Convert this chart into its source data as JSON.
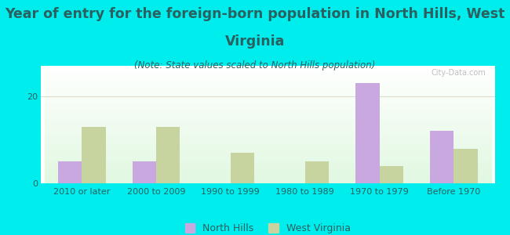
{
  "categories": [
    "2010 or later",
    "2000 to 2009",
    "1990 to 1999",
    "1980 to 1989",
    "1970 to 1979",
    "Before 1970"
  ],
  "north_hills": [
    5,
    5,
    0,
    0,
    23,
    12
  ],
  "west_virginia": [
    13,
    13,
    7,
    5,
    4,
    8
  ],
  "north_hills_color": "#c9a8e0",
  "west_virginia_color": "#c8d4a0",
  "title_line1": "Year of entry for the foreign-born population in North Hills, West",
  "title_line2": "Virginia",
  "subtitle": "(Note: State values scaled to North Hills population)",
  "background_color": "#00eded",
  "ylim": [
    0,
    27
  ],
  "yticks": [
    0,
    20
  ],
  "bar_width": 0.32,
  "title_fontsize": 12.5,
  "subtitle_fontsize": 8.5,
  "tick_fontsize": 8,
  "legend_fontsize": 9,
  "watermark": "City-Data.com",
  "text_color": "#2a6060",
  "grid_color": "#e0ece0"
}
